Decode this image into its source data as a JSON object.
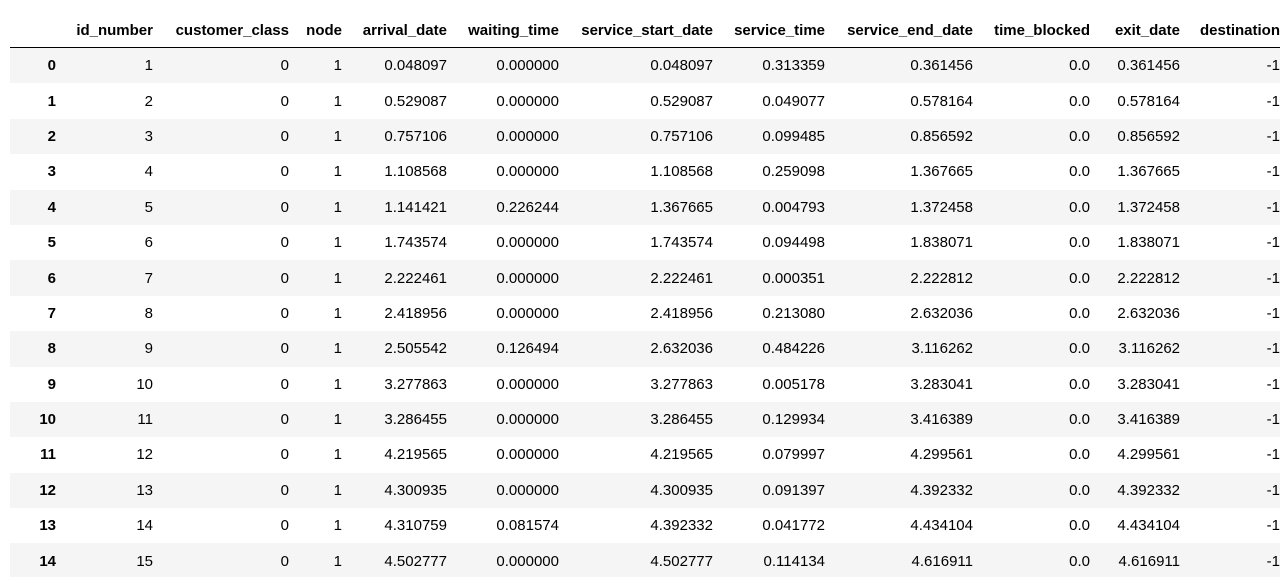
{
  "table": {
    "index_header": "",
    "columns": [
      "id_number",
      "customer_class",
      "node",
      "arrival_date",
      "waiting_time",
      "service_start_date",
      "service_time",
      "service_end_date",
      "time_blocked",
      "exit_date",
      "destination"
    ],
    "rows": [
      [
        "0",
        "1",
        "0",
        "1",
        "0.048097",
        "0.000000",
        "0.048097",
        "0.313359",
        "0.361456",
        "0.0",
        "0.361456",
        "-1"
      ],
      [
        "1",
        "2",
        "0",
        "1",
        "0.529087",
        "0.000000",
        "0.529087",
        "0.049077",
        "0.578164",
        "0.0",
        "0.578164",
        "-1"
      ],
      [
        "2",
        "3",
        "0",
        "1",
        "0.757106",
        "0.000000",
        "0.757106",
        "0.099485",
        "0.856592",
        "0.0",
        "0.856592",
        "-1"
      ],
      [
        "3",
        "4",
        "0",
        "1",
        "1.108568",
        "0.000000",
        "1.108568",
        "0.259098",
        "1.367665",
        "0.0",
        "1.367665",
        "-1"
      ],
      [
        "4",
        "5",
        "0",
        "1",
        "1.141421",
        "0.226244",
        "1.367665",
        "0.004793",
        "1.372458",
        "0.0",
        "1.372458",
        "-1"
      ],
      [
        "5",
        "6",
        "0",
        "1",
        "1.743574",
        "0.000000",
        "1.743574",
        "0.094498",
        "1.838071",
        "0.0",
        "1.838071",
        "-1"
      ],
      [
        "6",
        "7",
        "0",
        "1",
        "2.222461",
        "0.000000",
        "2.222461",
        "0.000351",
        "2.222812",
        "0.0",
        "2.222812",
        "-1"
      ],
      [
        "7",
        "8",
        "0",
        "1",
        "2.418956",
        "0.000000",
        "2.418956",
        "0.213080",
        "2.632036",
        "0.0",
        "2.632036",
        "-1"
      ],
      [
        "8",
        "9",
        "0",
        "1",
        "2.505542",
        "0.126494",
        "2.632036",
        "0.484226",
        "3.116262",
        "0.0",
        "3.116262",
        "-1"
      ],
      [
        "9",
        "10",
        "0",
        "1",
        "3.277863",
        "0.000000",
        "3.277863",
        "0.005178",
        "3.283041",
        "0.0",
        "3.283041",
        "-1"
      ],
      [
        "10",
        "11",
        "0",
        "1",
        "3.286455",
        "0.000000",
        "3.286455",
        "0.129934",
        "3.416389",
        "0.0",
        "3.416389",
        "-1"
      ],
      [
        "11",
        "12",
        "0",
        "1",
        "4.219565",
        "0.000000",
        "4.219565",
        "0.079997",
        "4.299561",
        "0.0",
        "4.299561",
        "-1"
      ],
      [
        "12",
        "13",
        "0",
        "1",
        "4.300935",
        "0.000000",
        "4.300935",
        "0.091397",
        "4.392332",
        "0.0",
        "4.392332",
        "-1"
      ],
      [
        "13",
        "14",
        "0",
        "1",
        "4.310759",
        "0.081574",
        "4.392332",
        "0.041772",
        "4.434104",
        "0.0",
        "4.434104",
        "-1"
      ],
      [
        "14",
        "15",
        "0",
        "1",
        "4.502777",
        "0.000000",
        "4.502777",
        "0.114134",
        "4.616911",
        "0.0",
        "4.616911",
        "-1"
      ]
    ]
  }
}
